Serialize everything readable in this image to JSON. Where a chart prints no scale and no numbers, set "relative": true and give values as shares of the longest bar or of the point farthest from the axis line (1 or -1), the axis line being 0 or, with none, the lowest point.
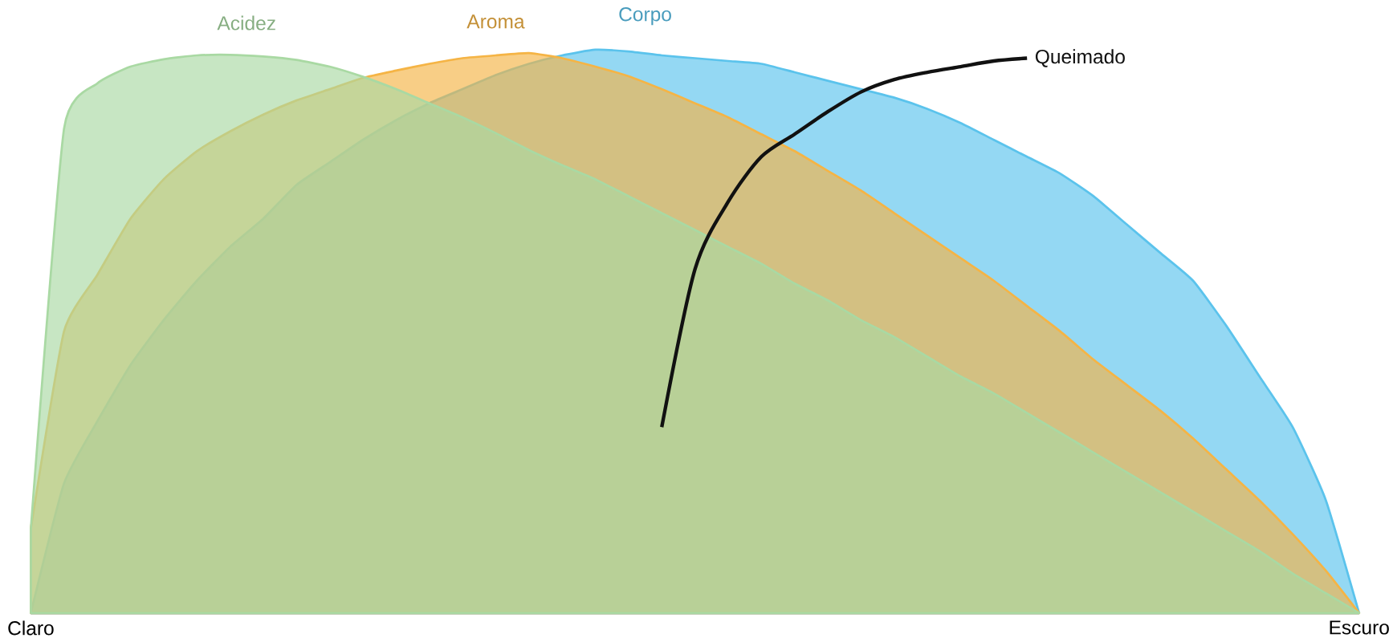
{
  "chart_data": {
    "type": "area",
    "relative": true,
    "grid": false,
    "legend": false,
    "categories": [
      "Claro",
      null,
      null,
      null,
      null,
      null,
      null,
      null,
      null,
      null,
      null,
      null,
      null,
      null,
      null,
      null,
      null,
      null,
      null,
      null,
      null,
      null,
      null,
      null,
      null,
      null,
      null,
      null,
      null,
      null,
      null,
      null,
      null,
      null,
      null,
      null,
      null,
      null,
      null,
      null,
      "Escuro"
    ],
    "series": [
      {
        "name": "Corpo",
        "color": "#5bc3ec",
        "values": [
          0,
          0.23,
          0.34,
          0.44,
          0.52,
          0.59,
          0.65,
          0.7,
          0.76,
          0.8,
          0.84,
          0.875,
          0.905,
          0.93,
          0.955,
          0.975,
          0.99,
          1,
          0.997,
          0.99,
          0.985,
          0.98,
          0.975,
          0.96,
          0.945,
          0.93,
          0.915,
          0.895,
          0.87,
          0.84,
          0.81,
          0.78,
          0.74,
          0.69,
          0.64,
          0.59,
          0.51,
          0.42,
          0.33,
          0.2,
          0
        ]
      },
      {
        "name": "Aroma",
        "color": "#f5b445",
        "values": [
          0.15,
          0.5,
          0.6,
          0.7,
          0.77,
          0.82,
          0.855,
          0.885,
          0.91,
          0.93,
          0.95,
          0.963,
          0.975,
          0.985,
          0.99,
          0.994,
          0.985,
          0.97,
          0.953,
          0.93,
          0.905,
          0.88,
          0.85,
          0.82,
          0.785,
          0.75,
          0.71,
          0.67,
          0.63,
          0.59,
          0.545,
          0.5,
          0.45,
          0.405,
          0.36,
          0.31,
          0.255,
          0.2,
          0.14,
          0.075,
          0
        ]
      },
      {
        "name": "Acidez",
        "color": "#a9d9a3",
        "values": [
          0.15,
          0.86,
          0.94,
          0.97,
          0.983,
          0.99,
          0.991,
          0.988,
          0.982,
          0.97,
          0.952,
          0.93,
          0.905,
          0.88,
          0.852,
          0.822,
          0.795,
          0.77,
          0.74,
          0.71,
          0.68,
          0.65,
          0.62,
          0.585,
          0.555,
          0.52,
          0.49,
          0.455,
          0.42,
          0.39,
          0.355,
          0.32,
          0.285,
          0.25,
          0.215,
          0.18,
          0.145,
          0.11,
          0.07,
          0.035,
          0
        ]
      },
      {
        "name": "Queimado",
        "type": "line",
        "color": "#111111",
        "values": [
          null,
          null,
          null,
          null,
          null,
          null,
          null,
          null,
          null,
          null,
          null,
          null,
          null,
          null,
          null,
          null,
          null,
          null,
          null,
          0.33,
          0.61,
          0.73,
          0.81,
          0.85,
          0.89,
          0.925,
          0.947,
          0.96,
          0.97,
          0.98,
          0.985,
          null,
          null,
          null,
          null,
          null,
          null,
          null,
          null,
          null,
          null
        ]
      }
    ]
  }
}
